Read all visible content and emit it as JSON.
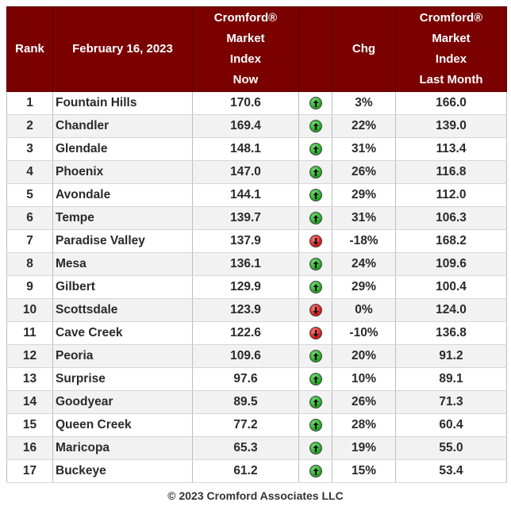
{
  "header": {
    "rank": "Rank",
    "date": "February 16, 2023",
    "index_now": [
      "Cromford®",
      "Market",
      "Index",
      "Now"
    ],
    "chg": "Chg",
    "index_last": [
      "Cromford®",
      "Market",
      "Index",
      "Last Month"
    ]
  },
  "colors": {
    "header_bg": "#7b0000",
    "up": "#1ea01e",
    "down": "#d01010"
  },
  "rows": [
    {
      "rank": "1",
      "city": "Fountain Hills",
      "now": "170.6",
      "dir": "up",
      "chg": "3%",
      "last": "166.0"
    },
    {
      "rank": "2",
      "city": "Chandler",
      "now": "169.4",
      "dir": "up",
      "chg": "22%",
      "last": "139.0"
    },
    {
      "rank": "3",
      "city": "Glendale",
      "now": "148.1",
      "dir": "up",
      "chg": "31%",
      "last": "113.4"
    },
    {
      "rank": "4",
      "city": "Phoenix",
      "now": "147.0",
      "dir": "up",
      "chg": "26%",
      "last": "116.8"
    },
    {
      "rank": "5",
      "city": "Avondale",
      "now": "144.1",
      "dir": "up",
      "chg": "29%",
      "last": "112.0"
    },
    {
      "rank": "6",
      "city": "Tempe",
      "now": "139.7",
      "dir": "up",
      "chg": "31%",
      "last": "106.3"
    },
    {
      "rank": "7",
      "city": "Paradise Valley",
      "now": "137.9",
      "dir": "down",
      "chg": "-18%",
      "last": "168.2"
    },
    {
      "rank": "8",
      "city": "Mesa",
      "now": "136.1",
      "dir": "up",
      "chg": "24%",
      "last": "109.6"
    },
    {
      "rank": "9",
      "city": "Gilbert",
      "now": "129.9",
      "dir": "up",
      "chg": "29%",
      "last": "100.4"
    },
    {
      "rank": "10",
      "city": "Scottsdale",
      "now": "123.9",
      "dir": "down",
      "chg": "0%",
      "last": "124.0"
    },
    {
      "rank": "11",
      "city": "Cave Creek",
      "now": "122.6",
      "dir": "down",
      "chg": "-10%",
      "last": "136.8"
    },
    {
      "rank": "12",
      "city": "Peoria",
      "now": "109.6",
      "dir": "up",
      "chg": "20%",
      "last": "91.2"
    },
    {
      "rank": "13",
      "city": "Surprise",
      "now": "97.6",
      "dir": "up",
      "chg": "10%",
      "last": "89.1"
    },
    {
      "rank": "14",
      "city": "Goodyear",
      "now": "89.5",
      "dir": "up",
      "chg": "26%",
      "last": "71.3"
    },
    {
      "rank": "15",
      "city": "Queen Creek",
      "now": "77.2",
      "dir": "up",
      "chg": "28%",
      "last": "60.4"
    },
    {
      "rank": "16",
      "city": "Maricopa",
      "now": "65.3",
      "dir": "up",
      "chg": "19%",
      "last": "55.0"
    },
    {
      "rank": "17",
      "city": "Buckeye",
      "now": "61.2",
      "dir": "up",
      "chg": "15%",
      "last": "53.4"
    }
  ],
  "footer": "© 2023 Cromford Associates LLC"
}
